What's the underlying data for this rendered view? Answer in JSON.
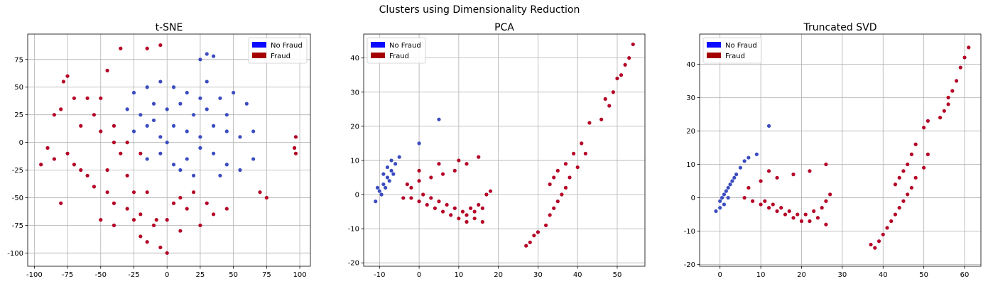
{
  "figure": {
    "title": "Clusters using Dimensionality Reduction"
  },
  "colors": {
    "no_fraud_patch": "#0a0aff",
    "fraud_patch": "#a50000",
    "no_fraud_points": "#3b4cc0",
    "fraud_points": "#b40426"
  },
  "legend": {
    "no_fraud": "No Fraud",
    "fraud": "Fraud"
  },
  "chart_data": [
    {
      "type": "scatter",
      "title": "t-SNE",
      "xlabel": "",
      "ylabel": "",
      "xlim": [
        -105,
        108
      ],
      "ylim": [
        -112,
        98
      ],
      "xticks": [
        -100,
        -75,
        -50,
        -25,
        0,
        25,
        50,
        75,
        100
      ],
      "yticks": [
        -100,
        -75,
        -50,
        -25,
        0,
        25,
        50,
        75
      ],
      "grid": true,
      "legend_position": "top-right",
      "series": [
        {
          "name": "No Fraud",
          "points": [
            [
              -25,
              45
            ],
            [
              -15,
              50
            ],
            [
              -5,
              55
            ],
            [
              5,
              50
            ],
            [
              15,
              45
            ],
            [
              25,
              40
            ],
            [
              -30,
              30
            ],
            [
              -20,
              25
            ],
            [
              -10,
              35
            ],
            [
              0,
              30
            ],
            [
              10,
              35
            ],
            [
              20,
              25
            ],
            [
              30,
              30
            ],
            [
              40,
              40
            ],
            [
              50,
              45
            ],
            [
              60,
              35
            ],
            [
              -25,
              10
            ],
            [
              -15,
              15
            ],
            [
              -5,
              5
            ],
            [
              5,
              15
            ],
            [
              15,
              10
            ],
            [
              25,
              5
            ],
            [
              35,
              15
            ],
            [
              45,
              10
            ],
            [
              55,
              5
            ],
            [
              65,
              10
            ],
            [
              -15,
              -15
            ],
            [
              -5,
              -10
            ],
            [
              5,
              -20
            ],
            [
              15,
              -15
            ],
            [
              25,
              -5
            ],
            [
              35,
              -10
            ],
            [
              45,
              -20
            ],
            [
              55,
              -25
            ],
            [
              65,
              -15
            ],
            [
              30,
              80
            ],
            [
              25,
              75
            ],
            [
              35,
              78
            ],
            [
              10,
              -25
            ],
            [
              20,
              -30
            ],
            [
              40,
              -30
            ],
            [
              0,
              0
            ],
            [
              -10,
              20
            ],
            [
              30,
              55
            ],
            [
              45,
              25
            ]
          ]
        },
        {
          "name": "Fraud",
          "points": [
            [
              -75,
              60
            ],
            [
              -78,
              55
            ],
            [
              -80,
              30
            ],
            [
              -85,
              25
            ],
            [
              -90,
              -5
            ],
            [
              -95,
              -20
            ],
            [
              -85,
              -15
            ],
            [
              -75,
              -10
            ],
            [
              -70,
              -20
            ],
            [
              -65,
              -25
            ],
            [
              -60,
              -30
            ],
            [
              -55,
              -40
            ],
            [
              -45,
              -45
            ],
            [
              -40,
              -55
            ],
            [
              -30,
              -60
            ],
            [
              -20,
              -65
            ],
            [
              -80,
              -55
            ],
            [
              -50,
              -70
            ],
            [
              -40,
              -75
            ],
            [
              -25,
              -70
            ],
            [
              -10,
              -75
            ],
            [
              0,
              -70
            ],
            [
              10,
              -80
            ],
            [
              25,
              -75
            ],
            [
              35,
              -65
            ],
            [
              45,
              -60
            ],
            [
              5,
              -55
            ],
            [
              15,
              -60
            ],
            [
              30,
              -55
            ],
            [
              -20,
              -85
            ],
            [
              -15,
              -90
            ],
            [
              -5,
              -95
            ],
            [
              0,
              -100
            ],
            [
              -45,
              65
            ],
            [
              -35,
              85
            ],
            [
              -15,
              85
            ],
            [
              -5,
              88
            ],
            [
              -50,
              40
            ],
            [
              -55,
              25
            ],
            [
              -65,
              15
            ],
            [
              -50,
              10
            ],
            [
              -40,
              0
            ],
            [
              -35,
              -10
            ],
            [
              -45,
              -25
            ],
            [
              -30,
              -30
            ],
            [
              97,
              5
            ],
            [
              96,
              -5
            ],
            [
              97,
              -10
            ],
            [
              70,
              -45
            ],
            [
              75,
              -50
            ],
            [
              -40,
              15
            ],
            [
              -60,
              40
            ],
            [
              -25,
              -45
            ],
            [
              -15,
              -45
            ],
            [
              10,
              -50
            ],
            [
              20,
              -45
            ],
            [
              -8,
              -70
            ],
            [
              -70,
              40
            ],
            [
              -30,
              0
            ],
            [
              -20,
              -10
            ]
          ]
        }
      ]
    },
    {
      "type": "scatter",
      "title": "PCA",
      "xlabel": "",
      "ylabel": "",
      "xlim": [
        -14,
        57
      ],
      "ylim": [
        -21,
        47
      ],
      "xticks": [
        -10,
        0,
        10,
        20,
        30,
        40,
        50
      ],
      "yticks": [
        -20,
        -10,
        0,
        10,
        20,
        30,
        40
      ],
      "grid": true,
      "legend_position": "top-left",
      "series": [
        {
          "name": "No Fraud",
          "points": [
            [
              -10,
              1
            ],
            [
              -9,
              3
            ],
            [
              -8,
              5
            ],
            [
              -7,
              7
            ],
            [
              -6,
              9
            ],
            [
              -5,
              11
            ],
            [
              -9.5,
              0
            ],
            [
              -8.5,
              2
            ],
            [
              -7.5,
              4
            ],
            [
              -6.5,
              6
            ],
            [
              -10.5,
              2
            ],
            [
              -9,
              6
            ],
            [
              -8,
              8
            ],
            [
              -7,
              10
            ],
            [
              -11,
              -2
            ],
            [
              0,
              15
            ],
            [
              5,
              22
            ]
          ]
        },
        {
          "name": "Fraud",
          "points": [
            [
              -4,
              -1
            ],
            [
              -2,
              -1
            ],
            [
              0,
              -2
            ],
            [
              2,
              -3
            ],
            [
              4,
              -4
            ],
            [
              6,
              -5
            ],
            [
              8,
              -6
            ],
            [
              10,
              -7
            ],
            [
              12,
              -6
            ],
            [
              14,
              -5
            ],
            [
              1,
              0
            ],
            [
              3,
              -1
            ],
            [
              5,
              -2
            ],
            [
              7,
              -3
            ],
            [
              9,
              -4
            ],
            [
              11,
              -5
            ],
            [
              13,
              -4
            ],
            [
              15,
              -3
            ],
            [
              16,
              -8
            ],
            [
              12,
              -8
            ],
            [
              14,
              -7
            ],
            [
              16,
              -4
            ],
            [
              17,
              0
            ],
            [
              18,
              1
            ],
            [
              -3,
              3
            ],
            [
              0,
              4
            ],
            [
              3,
              5
            ],
            [
              6,
              6
            ],
            [
              9,
              7
            ],
            [
              12,
              9
            ],
            [
              15,
              11
            ],
            [
              0,
              7
            ],
            [
              5,
              9
            ],
            [
              10,
              10
            ],
            [
              -2,
              2
            ],
            [
              27,
              -15
            ],
            [
              28,
              -14
            ],
            [
              29,
              -12
            ],
            [
              30,
              -11
            ],
            [
              32,
              -9
            ],
            [
              33,
              -6
            ],
            [
              34,
              -4
            ],
            [
              35,
              -2
            ],
            [
              36,
              0
            ],
            [
              37,
              2
            ],
            [
              38,
              5
            ],
            [
              40,
              8
            ],
            [
              42,
              12
            ],
            [
              33,
              3
            ],
            [
              34,
              5
            ],
            [
              35,
              7
            ],
            [
              37,
              9
            ],
            [
              39,
              12
            ],
            [
              41,
              15
            ],
            [
              43,
              21
            ],
            [
              46,
              22
            ],
            [
              48,
              26
            ],
            [
              49,
              30
            ],
            [
              51,
              35
            ],
            [
              53,
              40
            ],
            [
              54,
              44
            ],
            [
              50,
              34
            ],
            [
              52,
              38
            ],
            [
              47,
              28
            ]
          ]
        }
      ]
    },
    {
      "type": "scatter",
      "title": "Truncated SVD",
      "xlabel": "",
      "ylabel": "",
      "xlim": [
        -5,
        64
      ],
      "ylim": [
        -20.5,
        49
      ],
      "xticks": [
        0,
        10,
        20,
        30,
        40,
        50,
        60
      ],
      "yticks": [
        -20,
        -10,
        0,
        10,
        20,
        30,
        40
      ],
      "grid": true,
      "legend_position": "top-left",
      "series": [
        {
          "name": "No Fraud",
          "points": [
            [
              -1,
              -4
            ],
            [
              0,
              -1
            ],
            [
              1,
              1
            ],
            [
              2,
              3
            ],
            [
              3,
              5
            ],
            [
              4,
              7
            ],
            [
              5,
              9
            ],
            [
              6,
              11
            ],
            [
              0.5,
              0
            ],
            [
              1.5,
              2
            ],
            [
              2.5,
              4
            ],
            [
              3.5,
              6
            ],
            [
              1,
              -2
            ],
            [
              2,
              0
            ],
            [
              0,
              -3
            ],
            [
              7,
              12
            ],
            [
              9,
              13
            ],
            [
              12,
              21.5
            ]
          ]
        },
        {
          "name": "Fraud",
          "points": [
            [
              6,
              0
            ],
            [
              8,
              -1
            ],
            [
              10,
              -2
            ],
            [
              12,
              -3
            ],
            [
              14,
              -4
            ],
            [
              16,
              -5
            ],
            [
              18,
              -6
            ],
            [
              20,
              -7
            ],
            [
              22,
              -7
            ],
            [
              24,
              -6
            ],
            [
              26,
              -8
            ],
            [
              11,
              -1
            ],
            [
              13,
              -2
            ],
            [
              15,
              -3
            ],
            [
              17,
              -4
            ],
            [
              19,
              -5
            ],
            [
              21,
              -5
            ],
            [
              23,
              -4
            ],
            [
              25,
              -3
            ],
            [
              26,
              -1
            ],
            [
              27,
              1
            ],
            [
              7,
              3
            ],
            [
              10,
              5
            ],
            [
              14,
              6
            ],
            [
              18,
              7
            ],
            [
              22,
              8
            ],
            [
              26,
              10
            ],
            [
              12,
              8
            ],
            [
              37,
              -14
            ],
            [
              38,
              -15
            ],
            [
              39,
              -13
            ],
            [
              40,
              -11
            ],
            [
              41,
              -9
            ],
            [
              42,
              -7
            ],
            [
              43,
              -5
            ],
            [
              44,
              -3
            ],
            [
              45,
              -1
            ],
            [
              46,
              1
            ],
            [
              47,
              3
            ],
            [
              48,
              6
            ],
            [
              50,
              9
            ],
            [
              51,
              13
            ],
            [
              43,
              4
            ],
            [
              44,
              6
            ],
            [
              45,
              8
            ],
            [
              46,
              10
            ],
            [
              47,
              13
            ],
            [
              48,
              16
            ],
            [
              50,
              21
            ],
            [
              51,
              23
            ],
            [
              54,
              24
            ],
            [
              56,
              28
            ],
            [
              57,
              32
            ],
            [
              58,
              35
            ],
            [
              59,
              39
            ],
            [
              60,
              42
            ],
            [
              61,
              45
            ],
            [
              55,
              26
            ],
            [
              56,
              30
            ]
          ]
        }
      ]
    }
  ]
}
